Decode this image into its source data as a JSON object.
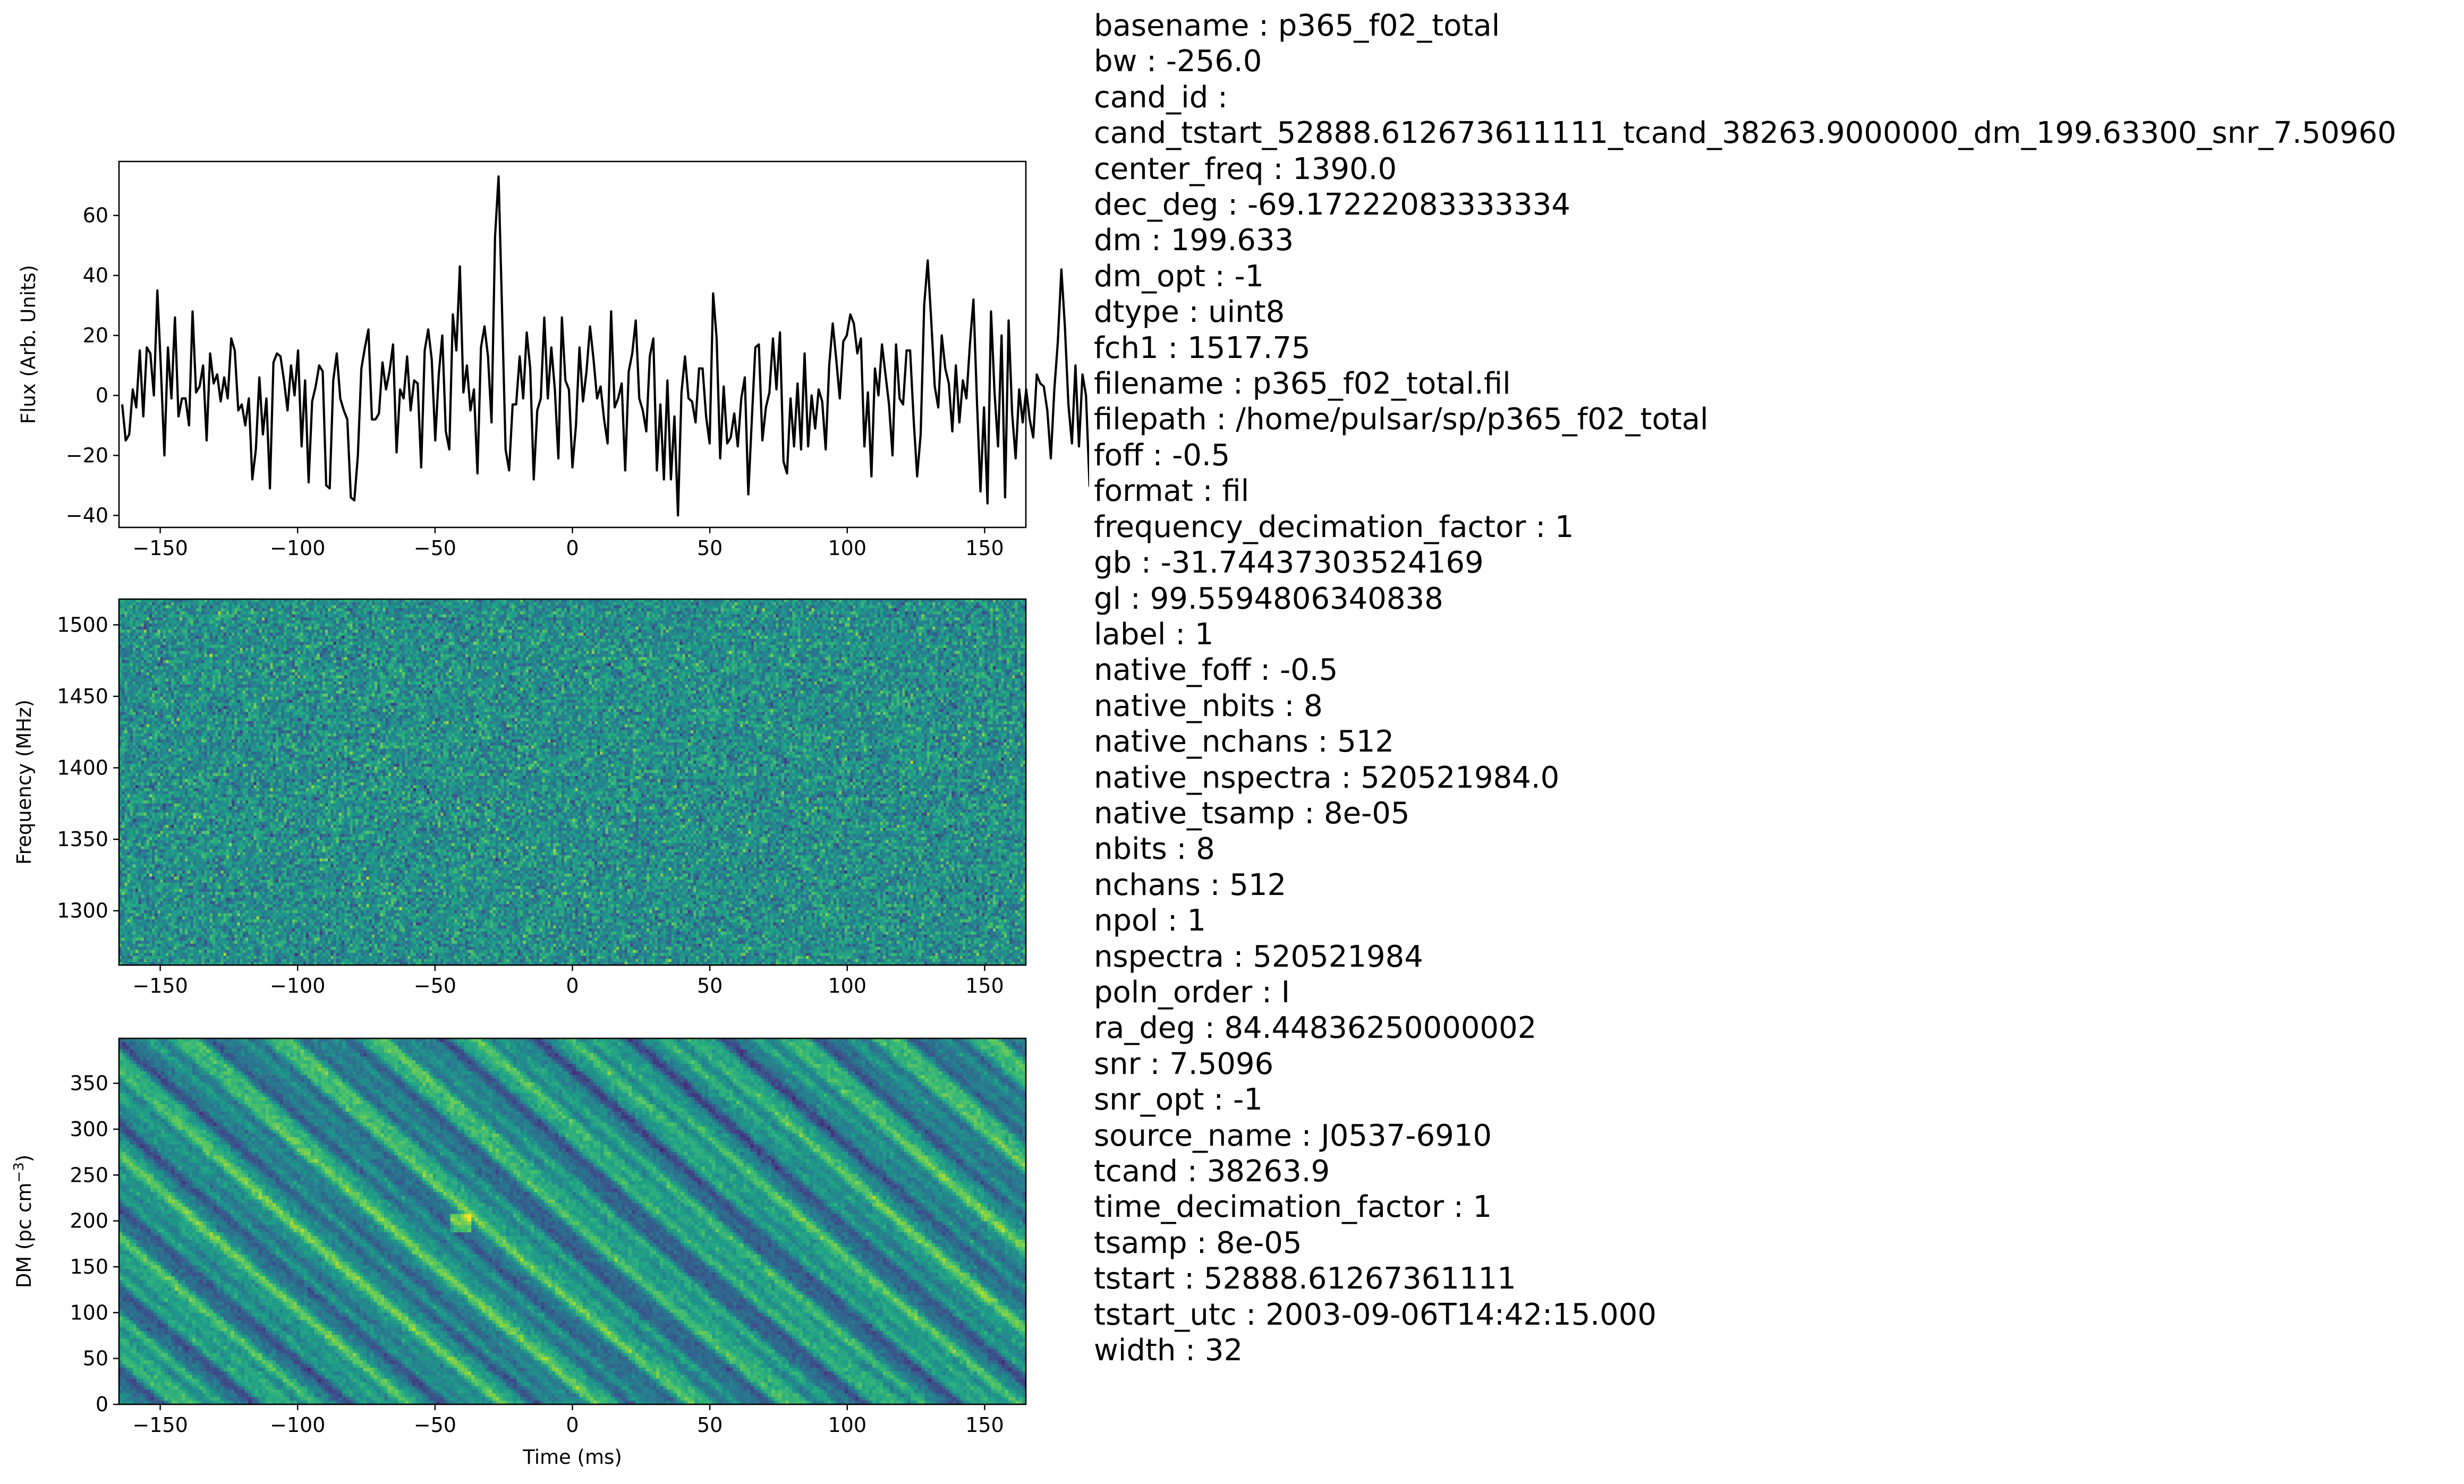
{
  "chart_data": [
    {
      "type": "line",
      "panel": "timeseries",
      "ylabel": "Flux (Arb. Units)",
      "xlabel": "",
      "xlim": [
        -165,
        165
      ],
      "ylim": [
        -44,
        78
      ],
      "xticks": [
        -150,
        -100,
        -50,
        0,
        50,
        100,
        150
      ],
      "yticks": [
        -40,
        -20,
        0,
        20,
        40,
        60
      ],
      "line_color": "#000000",
      "x_start": -163.84,
      "x_step": 1.28,
      "values": [
        -3,
        -15,
        -13,
        2,
        -4,
        15,
        -7,
        16,
        14,
        0,
        35,
        9,
        -20,
        16,
        -1,
        26,
        -7,
        -1,
        -1,
        -10,
        28,
        1,
        3,
        10,
        -15,
        14,
        4,
        7,
        -2,
        6,
        -1,
        19,
        15,
        -5,
        -3,
        -10,
        -1,
        -28,
        -18,
        6,
        -13,
        -1,
        -31,
        11,
        14,
        13,
        5,
        -5,
        10,
        0,
        15,
        -17,
        5,
        -29,
        -2,
        3,
        10,
        8,
        -30,
        -31,
        5,
        14,
        -1,
        -5,
        -8,
        -34,
        -35,
        -20,
        9,
        16,
        22,
        -8,
        -8,
        -6,
        11,
        2,
        8,
        17,
        -19,
        2,
        -1,
        13,
        -5,
        5,
        4,
        -24,
        15,
        22,
        12,
        -15,
        7,
        20,
        -12,
        -18,
        27,
        15,
        43,
        1,
        10,
        -5,
        2,
        -26,
        16,
        23,
        13,
        -9,
        53,
        73,
        28,
        -18,
        -25,
        -3,
        -3,
        13,
        -1,
        21,
        9,
        -28,
        -5,
        -1,
        26,
        -1,
        16,
        2,
        -21,
        26,
        5,
        2,
        -24,
        -10,
        16,
        -2,
        8,
        23,
        12,
        -1,
        3,
        -8,
        -16,
        28,
        -4,
        -1,
        4,
        -25,
        8,
        14,
        25,
        -1,
        -5,
        -12,
        13,
        19,
        -25,
        -3,
        -28,
        5,
        -28,
        -7,
        -40,
        1,
        13,
        -1,
        -2,
        -9,
        9,
        9,
        -7,
        -16,
        34,
        19,
        -21,
        3,
        -16,
        -14,
        -6,
        -17,
        -1,
        6,
        -33,
        -8,
        16,
        17,
        -15,
        -4,
        1,
        19,
        2,
        21,
        -22,
        -26,
        -1,
        -17,
        4,
        -18,
        14,
        -17,
        0,
        -11,
        2,
        -2,
        -18,
        10,
        24,
        12,
        -1,
        18,
        20,
        27,
        24,
        14,
        19,
        -17,
        1,
        -27,
        9,
        0,
        17,
        7,
        -3,
        -20,
        17,
        -1,
        -3,
        15,
        15,
        -8,
        -27,
        -13,
        30,
        45,
        25,
        3,
        -4,
        20,
        9,
        4,
        -12,
        10,
        -9,
        5,
        -1,
        17,
        32,
        -2,
        -32,
        -4,
        -36,
        28,
        1,
        -17,
        20,
        -34,
        25,
        -6,
        -21,
        2,
        -9,
        2,
        -8,
        -14,
        7,
        4,
        3,
        -5,
        -21,
        2,
        18,
        42,
        23,
        -3,
        -16,
        10,
        -17,
        7,
        0,
        -30,
        -34,
        -27,
        -10,
        -1,
        0,
        -6,
        -7,
        -10
      ]
    },
    {
      "type": "heatmap",
      "panel": "frequency-time",
      "ylabel": "Frequency (MHz)",
      "xlabel": "",
      "xlim": [
        -165,
        165
      ],
      "ylim": [
        1518,
        1262
      ],
      "xticks": [
        -150,
        -100,
        -50,
        0,
        50,
        100,
        150
      ],
      "yticks": [
        1300,
        1350,
        1400,
        1450,
        1500
      ],
      "colormap": "viridis"
    },
    {
      "type": "heatmap",
      "panel": "dm-time",
      "ylabel": "DM (pc cm$^{-3}$)",
      "ylabel_text": "DM (pc cm",
      "ylabel_sup": "−3",
      "ylabel_close": ")",
      "xlabel": "Time (ms)",
      "xlim": [
        -165,
        165
      ],
      "ylim": [
        399,
        0
      ],
      "xticks": [
        -150,
        -100,
        -50,
        0,
        50,
        100,
        150
      ],
      "yticks": [
        0,
        50,
        100,
        150,
        200,
        250,
        300,
        350
      ],
      "colormap": "viridis"
    }
  ],
  "metadata": [
    {
      "key": "basename",
      "value": "p365_f02_total"
    },
    {
      "key": "bw",
      "value": "-256.0"
    },
    {
      "key": "cand_id",
      "value": ""
    },
    {
      "key": "",
      "value": "cand_tstart_52888.612673611111_tcand_38263.9000000_dm_199.63300_snr_7.50960"
    },
    {
      "key": "center_freq",
      "value": "1390.0"
    },
    {
      "key": "dec_deg",
      "value": "-69.17222083333334"
    },
    {
      "key": "dm",
      "value": "199.633"
    },
    {
      "key": "dm_opt",
      "value": "-1"
    },
    {
      "key": "dtype",
      "value": "uint8"
    },
    {
      "key": "fch1",
      "value": "1517.75"
    },
    {
      "key": "filename",
      "value": "p365_f02_total.fil"
    },
    {
      "key": "filepath",
      "value": "/home/pulsar/sp/p365_f02_total"
    },
    {
      "key": "foff",
      "value": "-0.5"
    },
    {
      "key": "format",
      "value": "fil"
    },
    {
      "key": "frequency_decimation_factor",
      "value": "1"
    },
    {
      "key": "gb",
      "value": "-31.74437303524169"
    },
    {
      "key": "gl",
      "value": "99.5594806340838"
    },
    {
      "key": "label",
      "value": "1"
    },
    {
      "key": "native_foff",
      "value": "-0.5"
    },
    {
      "key": "native_nbits",
      "value": "8"
    },
    {
      "key": "native_nchans",
      "value": "512"
    },
    {
      "key": "native_nspectra",
      "value": "520521984.0"
    },
    {
      "key": "native_tsamp",
      "value": "8e-05"
    },
    {
      "key": "nbits",
      "value": "8"
    },
    {
      "key": "nchans",
      "value": "512"
    },
    {
      "key": "npol",
      "value": "1"
    },
    {
      "key": "nspectra",
      "value": "520521984"
    },
    {
      "key": "poln_order",
      "value": "I"
    },
    {
      "key": "ra_deg",
      "value": "84.44836250000002"
    },
    {
      "key": "snr",
      "value": "7.5096"
    },
    {
      "key": "snr_opt",
      "value": "-1"
    },
    {
      "key": "source_name",
      "value": "J0537-6910"
    },
    {
      "key": "tcand",
      "value": "38263.9"
    },
    {
      "key": "time_decimation_factor",
      "value": "1"
    },
    {
      "key": "tsamp",
      "value": "8e-05"
    },
    {
      "key": "tstart",
      "value": "52888.61267361111"
    },
    {
      "key": "tstart_utc",
      "value": "2003-09-06T14:42:15.000"
    },
    {
      "key": "width",
      "value": "32"
    }
  ],
  "meta_separator": " : "
}
